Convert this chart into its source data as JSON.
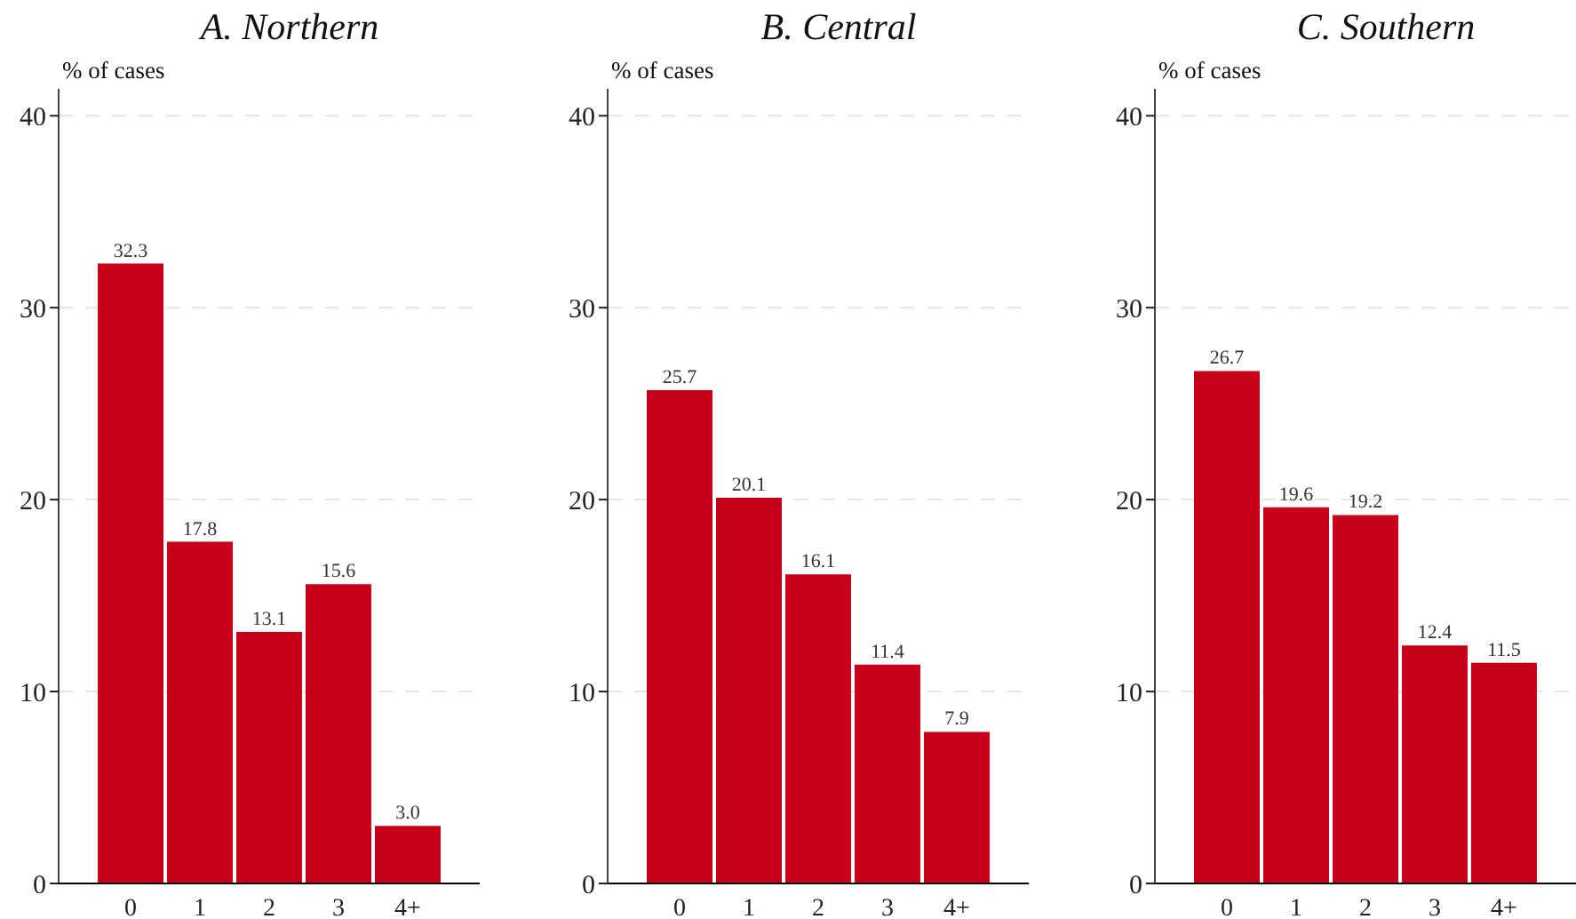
{
  "chart_data": [
    {
      "type": "bar",
      "title": "A. Northern",
      "ylabel": "% of cases",
      "categories": [
        "0",
        "1",
        "2",
        "3",
        "4+"
      ],
      "values": [
        32.3,
        17.8,
        13.1,
        15.6,
        3.0
      ],
      "value_labels": [
        "32.3",
        "17.8",
        "13.1",
        "15.6",
        "3.0"
      ],
      "color": "#c8001a",
      "ylim": [
        0,
        41.4
      ],
      "yticks": [
        0,
        10,
        20,
        30,
        40
      ],
      "grid": "y"
    },
    {
      "type": "bar",
      "title": "B. Central",
      "ylabel": "% of cases",
      "categories": [
        "0",
        "1",
        "2",
        "3",
        "4+"
      ],
      "values": [
        25.7,
        20.1,
        16.1,
        11.4,
        7.9
      ],
      "value_labels": [
        "25.7",
        "20.1",
        "16.1",
        "11.4",
        "7.9"
      ],
      "color": "#c8001a",
      "ylim": [
        0,
        41.4
      ],
      "yticks": [
        0,
        10,
        20,
        30,
        40
      ],
      "grid": "y"
    },
    {
      "type": "bar",
      "title": "C. Southern",
      "ylabel": "% of cases",
      "categories": [
        "0",
        "1",
        "2",
        "3",
        "4+"
      ],
      "values": [
        26.7,
        19.6,
        19.2,
        12.4,
        11.5
      ],
      "value_labels": [
        "26.7",
        "19.6",
        "19.2",
        "12.4",
        "11.5"
      ],
      "color": "#c8001a",
      "ylim": [
        0,
        41.4
      ],
      "yticks": [
        0,
        10,
        20,
        30,
        40
      ],
      "grid": "y"
    }
  ]
}
